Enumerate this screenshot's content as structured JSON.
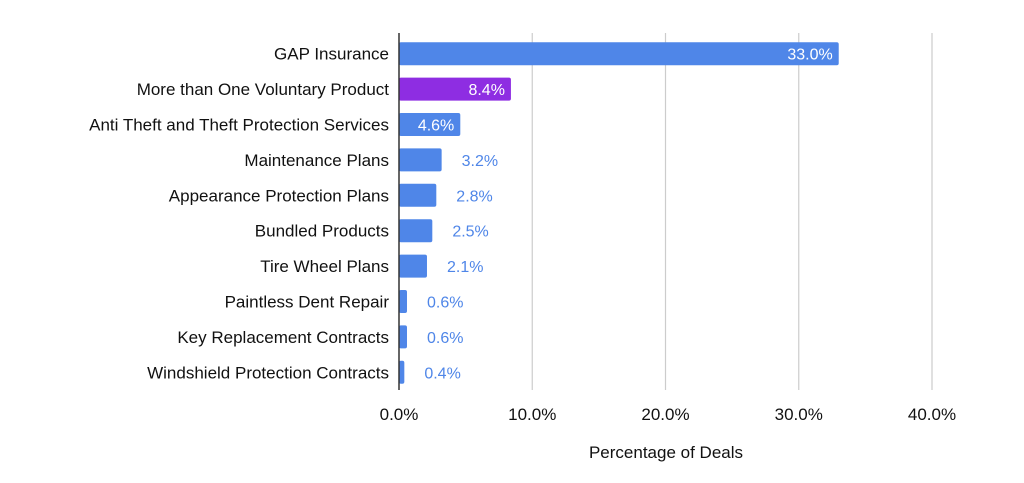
{
  "chart_data": {
    "type": "bar",
    "orientation": "horizontal",
    "categories": [
      "GAP Insurance",
      "More than One Voluntary Product",
      "Anti Theft and Theft Protection Services",
      "Maintenance Plans",
      "Appearance Protection Plans",
      "Bundled Products",
      "Tire Wheel Plans",
      "Paintless Dent Repair",
      "Key Replacement Contracts",
      "Windshield Protection Contracts"
    ],
    "values": [
      33.0,
      8.4,
      4.6,
      3.2,
      2.8,
      2.5,
      2.1,
      0.6,
      0.6,
      0.4
    ],
    "value_labels": [
      "33.0%",
      "8.4%",
      "4.6%",
      "3.2%",
      "2.8%",
      "2.5%",
      "2.1%",
      "0.6%",
      "0.6%",
      "0.4%"
    ],
    "bar_colors": [
      "#4f86e8",
      "#8e2de2",
      "#4f86e8",
      "#4f86e8",
      "#4f86e8",
      "#4f86e8",
      "#4f86e8",
      "#4f86e8",
      "#4f86e8",
      "#4f86e8"
    ],
    "xlim": [
      0,
      40
    ],
    "xticks": [
      0,
      10,
      20,
      30,
      40
    ],
    "xtick_labels": [
      "0.0%",
      "10.0%",
      "20.0%",
      "30.0%",
      "40.0%"
    ],
    "xlabel": "Percentage of Deals",
    "ylabel": "",
    "title": "",
    "grid": "vertical",
    "legend": "none",
    "colors": {
      "bar": "#4f86e8",
      "highlight": "#8e2de2",
      "outside_label": "#4f86e8",
      "grid": "#cccccc",
      "axis": "#333333"
    }
  }
}
